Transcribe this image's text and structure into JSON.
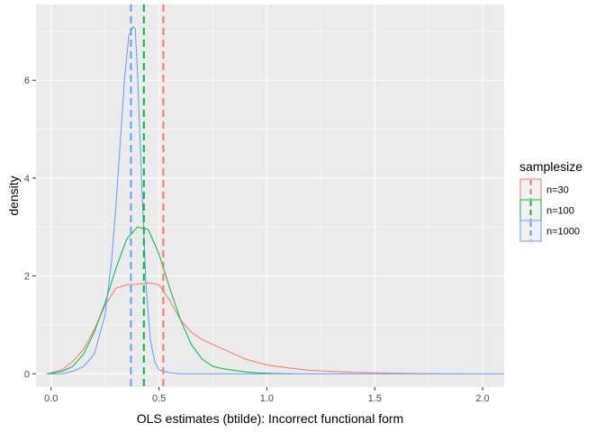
{
  "chart_data": {
    "type": "line",
    "xlabel": "OLS estimates (btilde): Incorrect functional form",
    "ylabel": "density",
    "xlim": [
      -0.07,
      2.1
    ],
    "ylim": [
      -0.27,
      7.55
    ],
    "x_ticks": [
      0.0,
      0.5,
      1.0,
      1.5,
      2.0
    ],
    "x_tick_labels": [
      "0.0",
      "0.5",
      "1.0",
      "1.5",
      "2.0"
    ],
    "y_ticks": [
      0,
      2,
      4,
      6
    ],
    "y_tick_labels": [
      "0",
      "2",
      "4",
      "6"
    ],
    "background": "#ebebeb",
    "grid": true,
    "legend": {
      "title": "samplesize",
      "position": "right",
      "entries": [
        "n=30",
        "n=100",
        "n=1000"
      ]
    },
    "series": [
      {
        "name": "n=30",
        "color": "#f8766d",
        "mean": 0.52,
        "x": [
          -0.02,
          0.0,
          0.05,
          0.1,
          0.15,
          0.2,
          0.25,
          0.3,
          0.35,
          0.4,
          0.45,
          0.5,
          0.55,
          0.6,
          0.65,
          0.7,
          0.8,
          0.9,
          1.0,
          1.1,
          1.2,
          1.4,
          1.6,
          1.8,
          1.92
        ],
        "y": [
          0.0,
          0.02,
          0.08,
          0.25,
          0.5,
          0.9,
          1.4,
          1.75,
          1.82,
          1.83,
          1.86,
          1.82,
          1.5,
          1.1,
          0.85,
          0.7,
          0.5,
          0.3,
          0.18,
          0.12,
          0.07,
          0.03,
          0.01,
          0.0,
          0.0
        ]
      },
      {
        "name": "n=100",
        "color": "#00ba38",
        "mean": 0.43,
        "x": [
          -0.02,
          0.0,
          0.05,
          0.1,
          0.15,
          0.2,
          0.25,
          0.3,
          0.35,
          0.4,
          0.45,
          0.5,
          0.55,
          0.6,
          0.65,
          0.7,
          0.75,
          0.8,
          0.85,
          0.9,
          0.95,
          1.0,
          1.1,
          1.12
        ],
        "y": [
          0.0,
          0.01,
          0.05,
          0.15,
          0.4,
          0.85,
          1.45,
          2.15,
          2.75,
          3.0,
          2.95,
          2.45,
          1.75,
          1.1,
          0.6,
          0.3,
          0.15,
          0.1,
          0.07,
          0.04,
          0.02,
          0.01,
          0.0,
          0.0
        ]
      },
      {
        "name": "n=1000",
        "color": "#619cff",
        "mean": 0.37,
        "x": [
          -0.01,
          0.05,
          0.1,
          0.15,
          0.2,
          0.25,
          0.28,
          0.3,
          0.32,
          0.34,
          0.36,
          0.38,
          0.39,
          0.4,
          0.42,
          0.44,
          0.46,
          0.48,
          0.5,
          0.55,
          0.6,
          0.7,
          1.0,
          1.5,
          2.1
        ],
        "y": [
          0.0,
          0.0,
          0.05,
          0.15,
          0.4,
          1.2,
          2.3,
          3.4,
          4.7,
          6.0,
          6.9,
          7.1,
          7.05,
          6.2,
          3.9,
          1.8,
          0.7,
          0.25,
          0.08,
          0.02,
          0.0,
          0.0,
          0.0,
          0.0,
          0.0
        ]
      }
    ]
  }
}
